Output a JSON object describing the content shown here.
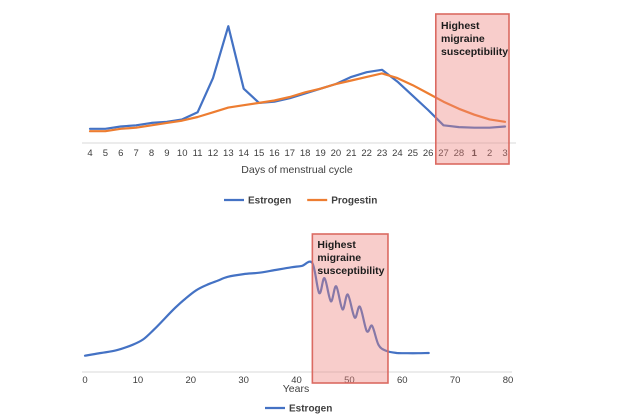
{
  "figure": {
    "background": "#ffffff"
  },
  "colors": {
    "estrogen": "#4472C4",
    "progestin": "#ED7D31",
    "highlight_fill": "rgba(237,130,125,0.40)",
    "highlight_border": "#DB6A62",
    "axis_line": "#D9D9D9",
    "tick_text": "#3d3d3d",
    "label_text": "#404040",
    "annotation_text": "#1c1c1c"
  },
  "chart_data": [
    {
      "type": "line",
      "title": "",
      "xlabel": "Days of menstrual cycle",
      "ylabel": "",
      "grid": false,
      "legend_position": "bottom",
      "ylim": [
        0,
        100
      ],
      "categories": [
        "4",
        "5",
        "6",
        "7",
        "8",
        "9",
        "10",
        "11",
        "12",
        "13",
        "14",
        "15",
        "16",
        "17",
        "18",
        "19",
        "20",
        "21",
        "22",
        "23",
        "24",
        "25",
        "26",
        "27",
        "28",
        "1",
        "2",
        "3"
      ],
      "bold_categories": [
        "1"
      ],
      "series": [
        {
          "name": "Estrogen",
          "color_key": "estrogen",
          "values": [
            12,
            12,
            14,
            15,
            17,
            18,
            20,
            26,
            55,
            99,
            46,
            34,
            35,
            38,
            42,
            46,
            50,
            56,
            60,
            62,
            52,
            40,
            28,
            15,
            13.5,
            13,
            13,
            14
          ]
        },
        {
          "name": "Progestin",
          "color_key": "progestin",
          "values": [
            10,
            10,
            12,
            13,
            15,
            17,
            19,
            22,
            26,
            30,
            32,
            34,
            36,
            39,
            43,
            46,
            50,
            53,
            56,
            59,
            55,
            49,
            42,
            35,
            29,
            24,
            20,
            18
          ]
        }
      ],
      "highlight": {
        "label": "Highest migraine susceptibility",
        "label_lines": [
          "Highest",
          "migraine",
          "susceptibility"
        ],
        "from_category": "27",
        "to_category": "3"
      },
      "legend": [
        {
          "label": "Estrogen",
          "color_key": "estrogen"
        },
        {
          "label": "Progestin",
          "color_key": "progestin"
        }
      ]
    },
    {
      "type": "line",
      "title": "",
      "xlabel": "Years",
      "ylabel": "",
      "grid": false,
      "legend_position": "bottom",
      "xlim": [
        0,
        80
      ],
      "ylim": [
        0,
        100
      ],
      "xticks": [
        0,
        10,
        20,
        30,
        40,
        50,
        60,
        70,
        80
      ],
      "series": [
        {
          "name": "Estrogen",
          "color_key": "estrogen",
          "smooth": true,
          "points": [
            [
              0,
              12
            ],
            [
              3,
              14
            ],
            [
              6,
              16
            ],
            [
              9,
              20
            ],
            [
              11,
              24
            ],
            [
              13,
              31
            ],
            [
              15,
              39
            ],
            [
              17,
              47
            ],
            [
              19,
              54
            ],
            [
              21,
              60
            ],
            [
              23,
              64
            ],
            [
              25,
              67
            ],
            [
              27,
              70
            ],
            [
              30,
              72
            ],
            [
              33,
              73
            ],
            [
              36,
              75
            ],
            [
              39,
              77
            ],
            [
              41,
              78
            ],
            [
              43,
              80
            ],
            [
              44.3,
              58
            ],
            [
              45.3,
              69
            ],
            [
              46.5,
              52
            ],
            [
              47.5,
              63
            ],
            [
              48.7,
              46
            ],
            [
              49.7,
              57
            ],
            [
              51,
              40
            ],
            [
              52,
              48
            ],
            [
              53.3,
              30
            ],
            [
              54.3,
              34
            ],
            [
              55.5,
              20
            ],
            [
              57,
              15.5
            ],
            [
              59,
              14
            ],
            [
              61,
              13.8
            ],
            [
              63,
              13.8
            ],
            [
              65,
              14
            ]
          ]
        }
      ],
      "highlight": {
        "label": "Highest migraine susceptibility",
        "label_lines": [
          "Highest",
          "migraine",
          "susceptibility"
        ],
        "from_x": 43,
        "to_x": 57.3
      },
      "legend": [
        {
          "label": "Estrogen",
          "color_key": "estrogen"
        }
      ]
    }
  ]
}
